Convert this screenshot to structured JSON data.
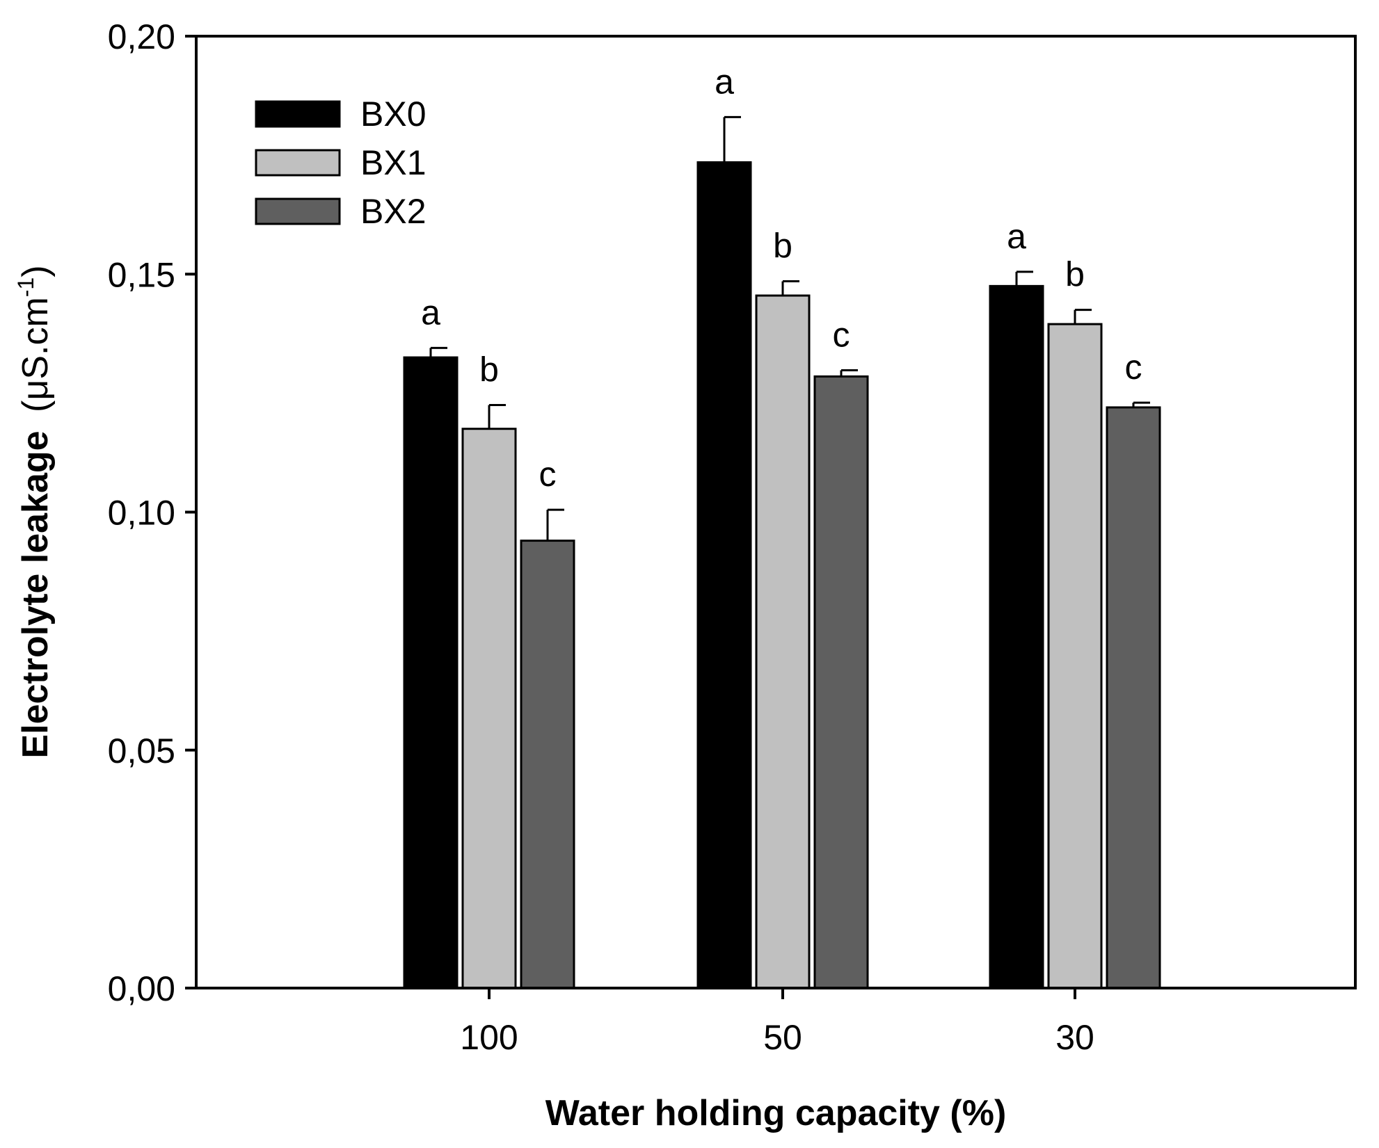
{
  "chart_data": {
    "type": "bar",
    "title": "",
    "xlabel": "Water holding capacity (%)",
    "ylabel": "Electrolyte leakage",
    "ylabel_unit_prefix": "(μS.cm",
    "ylabel_unit_sup": "-1",
    "ylabel_unit_suffix": ")",
    "categories": [
      "100",
      "50",
      "30"
    ],
    "ylim": [
      0,
      0.2
    ],
    "yticks": [
      0,
      0.05,
      0.1,
      0.15,
      0.2
    ],
    "ytick_labels": [
      "0,00",
      "0,05",
      "0,10",
      "0,15",
      "0,20"
    ],
    "legend_position": "top-left",
    "grid": false,
    "series": [
      {
        "name": "BX0",
        "color": "#000000",
        "values": [
          0.1325,
          0.1735,
          0.1475
        ],
        "errors": [
          0.002,
          0.0095,
          0.003
        ],
        "labels": [
          "a",
          "a",
          "a"
        ]
      },
      {
        "name": "BX1",
        "color": "#c0c0c0",
        "values": [
          0.1175,
          0.1455,
          0.1395
        ],
        "errors": [
          0.005,
          0.003,
          0.003
        ],
        "labels": [
          "b",
          "b",
          "b"
        ]
      },
      {
        "name": "BX2",
        "color": "#5f5f5f",
        "values": [
          0.094,
          0.1285,
          0.122
        ],
        "errors": [
          0.0065,
          0.0013,
          0.001
        ],
        "labels": [
          "c",
          "c",
          "c"
        ]
      }
    ]
  }
}
